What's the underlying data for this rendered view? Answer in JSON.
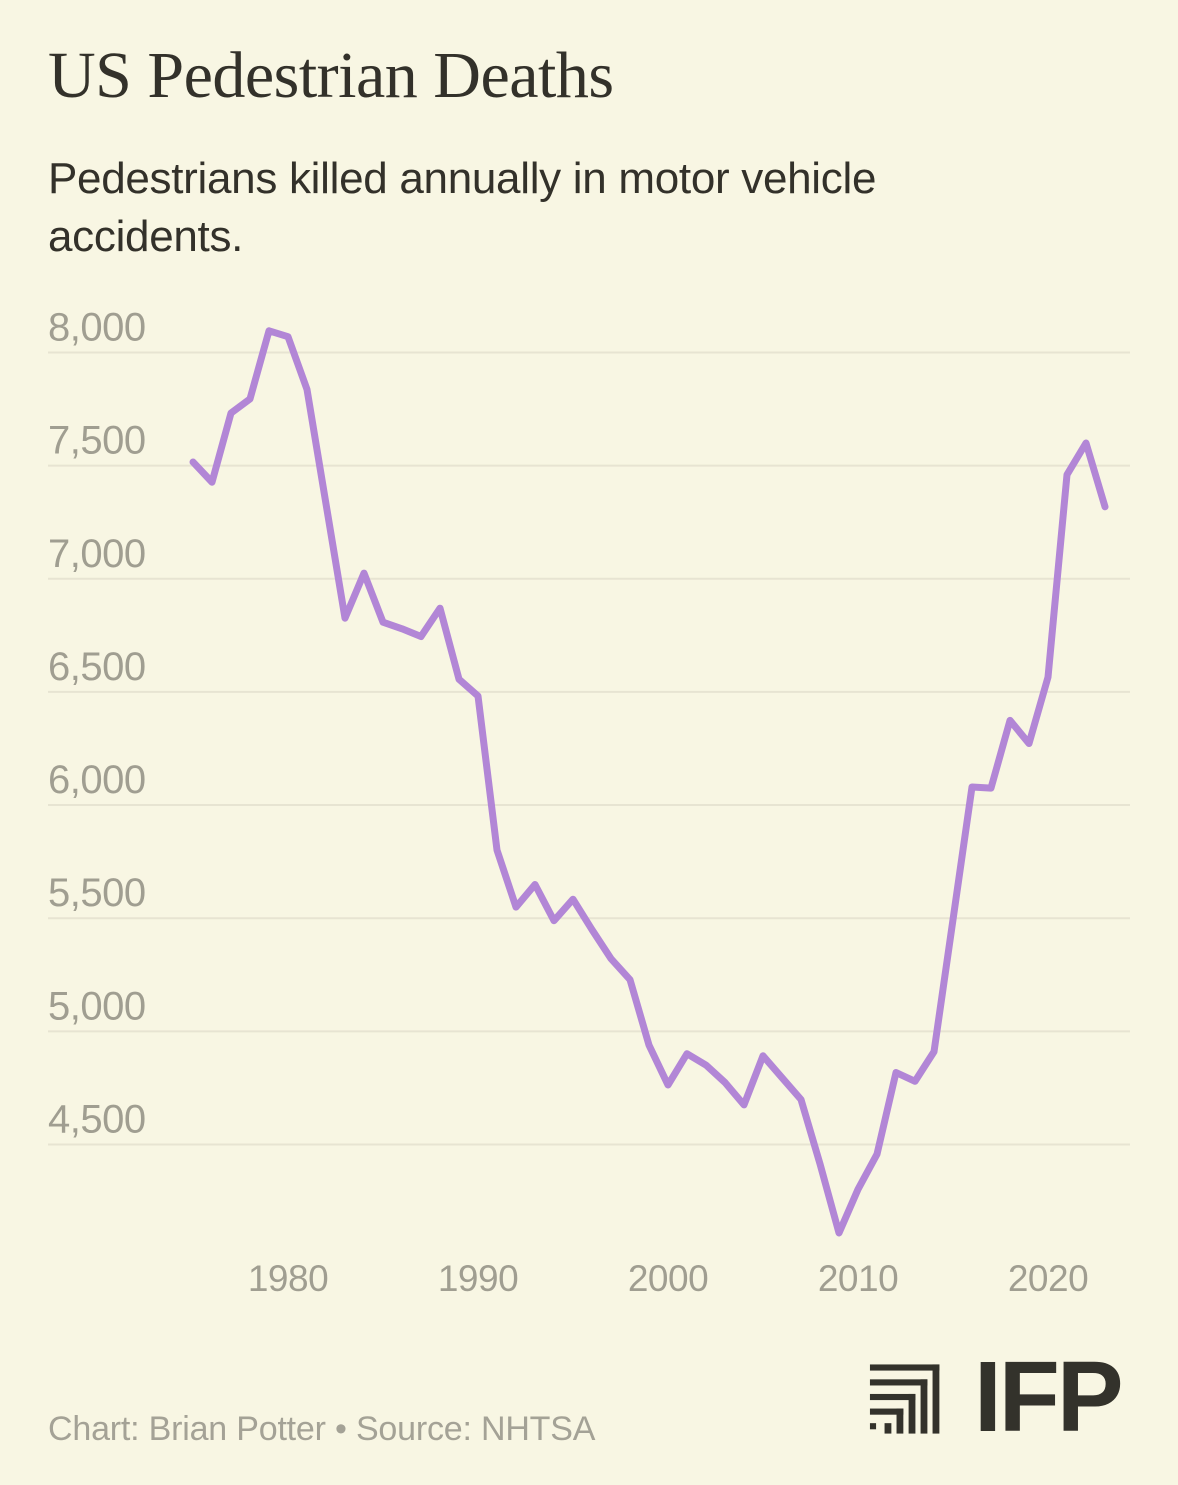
{
  "page": {
    "background": "#f8f6e3"
  },
  "header": {
    "title": "US Pedestrian Deaths",
    "subtitle": "Pedestrians killed annually in motor vehicle accidents."
  },
  "footer": {
    "credit": "Chart: Brian Potter • Source: NHTSA",
    "logo_text": "IFP"
  },
  "chart_data": {
    "type": "line",
    "title": "US Pedestrian Deaths",
    "subtitle": "Pedestrians killed annually in motor vehicle accidents.",
    "series_name": "Pedestrians killed annually",
    "x": [
      1975,
      1976,
      1977,
      1978,
      1979,
      1980,
      1981,
      1982,
      1983,
      1984,
      1985,
      1986,
      1987,
      1988,
      1989,
      1990,
      1991,
      1992,
      1993,
      1994,
      1995,
      1996,
      1997,
      1998,
      1999,
      2000,
      2001,
      2002,
      2003,
      2004,
      2005,
      2006,
      2007,
      2008,
      2009,
      2010,
      2011,
      2012,
      2013,
      2014,
      2015,
      2016,
      2017,
      2018,
      2019,
      2020,
      2021,
      2022,
      2023
    ],
    "values": [
      7516,
      7427,
      7732,
      7795,
      8096,
      8070,
      7837,
      7331,
      6826,
      7025,
      6808,
      6779,
      6745,
      6870,
      6556,
      6482,
      5801,
      5549,
      5649,
      5489,
      5584,
      5449,
      5321,
      5228,
      4939,
      4763,
      4901,
      4851,
      4774,
      4675,
      4892,
      4795,
      4699,
      4414,
      4109,
      4302,
      4457,
      4818,
      4779,
      4910,
      5494,
      6080,
      6075,
      6374,
      6272,
      6565,
      7460,
      7600,
      7318
    ],
    "y_ticks": [
      {
        "value": 8000,
        "label": "8,000"
      },
      {
        "value": 7500,
        "label": "7,500"
      },
      {
        "value": 7000,
        "label": "7,000"
      },
      {
        "value": 6500,
        "label": "6,500"
      },
      {
        "value": 6000,
        "label": "6,000"
      },
      {
        "value": 5500,
        "label": "5,500"
      },
      {
        "value": 5000,
        "label": "5,000"
      },
      {
        "value": 4500,
        "label": "4,500"
      }
    ],
    "x_ticks": [
      {
        "value": 1980,
        "label": "1980"
      },
      {
        "value": 1990,
        "label": "1990"
      },
      {
        "value": 2000,
        "label": "2000"
      },
      {
        "value": 2010,
        "label": "2010"
      },
      {
        "value": 2020,
        "label": "2020"
      }
    ],
    "xlim": [
      1975,
      2023
    ],
    "ylim": [
      4075,
      8150
    ],
    "grid": "horizontal",
    "legend": "none",
    "line_color": "#b286d6",
    "gridline_color": "#e7e4d2",
    "tick_label_color": "#a09e91"
  }
}
